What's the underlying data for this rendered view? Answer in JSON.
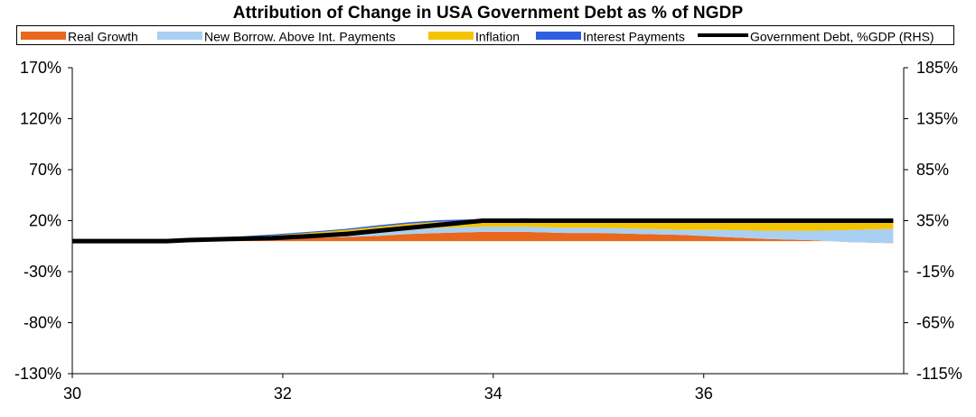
{
  "chart_data": {
    "type": "area",
    "title": "Attribution of Change in USA Government Debt as % of NGDP",
    "x_ticks": [
      "30",
      "32",
      "34",
      "36"
    ],
    "xlim": [
      30,
      37.9
    ],
    "y_left_ticks": [
      "170%",
      "120%",
      "70%",
      "20%",
      "-30%",
      "-80%",
      "-130%"
    ],
    "y_left_lim": [
      -130,
      170
    ],
    "y_right_ticks": [
      "185%",
      "135%",
      "85%",
      "35%",
      "-15%",
      "-65%",
      "-115%"
    ],
    "y_right_lim": [
      -115,
      185
    ],
    "grid": false,
    "legend_position": "top",
    "x": [
      30.0,
      30.5,
      30.9,
      31.1,
      31.5,
      31.9,
      32.3,
      32.6,
      32.9,
      33.2,
      33.5,
      33.9,
      34.3,
      34.7,
      35.0,
      35.4,
      35.8,
      36.2,
      36.6,
      37.0,
      37.4,
      37.8
    ],
    "series": [
      {
        "name": "Real Growth",
        "color": "#E8681E",
        "values": [
          0,
          0,
          0,
          0.5,
          1,
          2,
          3,
          4,
          5,
          7,
          8,
          9,
          9,
          8,
          8,
          7,
          6,
          4,
          2,
          1,
          -1,
          -2
        ]
      },
      {
        "name": "New Borrow. Above Int. Payments",
        "color": "#A9CFF2",
        "values": [
          0,
          0,
          0,
          1,
          1.5,
          2,
          2.5,
          3,
          3.5,
          4,
          5,
          5,
          5,
          5,
          5,
          5,
          5,
          7,
          8,
          9,
          12,
          14
        ]
      },
      {
        "name": "Inflation",
        "color": "#F5C400",
        "values": [
          0,
          0,
          0,
          0.5,
          1,
          1.5,
          3,
          4,
          5.5,
          6,
          6,
          6,
          7,
          7,
          7,
          7,
          8,
          8,
          8,
          8,
          7,
          6
        ]
      },
      {
        "name": "Interest Payments",
        "color": "#2E5FE0",
        "values": [
          0,
          0,
          0,
          0.5,
          0.5,
          1,
          1,
          1,
          1.5,
          1.5,
          1.5,
          1.5,
          1.5,
          1.5,
          1.5,
          1.5,
          1.5,
          1.5,
          1.5,
          1.5,
          2,
          2.5
        ]
      },
      {
        "name": "Government Debt, %GDP (RHS)",
        "color": "#000000",
        "axis": "right",
        "values": [
          15,
          15,
          15,
          16,
          17,
          18,
          20,
          22,
          25,
          28,
          31,
          35,
          35,
          35,
          35,
          35,
          35,
          35,
          35,
          35,
          35,
          35
        ]
      }
    ]
  }
}
